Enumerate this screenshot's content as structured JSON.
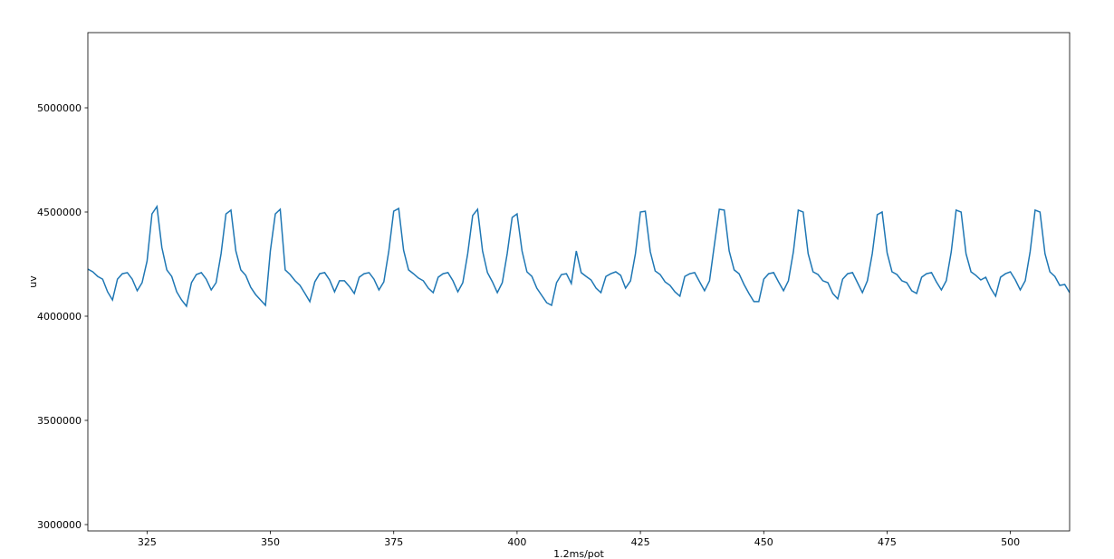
{
  "chart_data": {
    "type": "line",
    "title": "",
    "xlabel": "1.2ms/pot",
    "ylabel": "uv",
    "xlim": [
      313,
      512
    ],
    "ylim": [
      2969565,
      5360870
    ],
    "xticks": [
      325,
      350,
      375,
      400,
      425,
      450,
      475,
      500
    ],
    "xtick_labels": [
      "325",
      "350",
      "375",
      "400",
      "425",
      "450",
      "475",
      "500"
    ],
    "yticks": [
      3000000,
      3500000,
      4000000,
      4500000,
      5000000
    ],
    "ytick_labels": [
      "3000000",
      "3500000",
      "4000000",
      "4500000",
      "5000000"
    ],
    "grid": false,
    "line_color": "#1f77b4",
    "x": [
      313,
      314,
      315,
      316,
      317,
      318,
      319,
      320,
      321,
      322,
      323,
      324,
      325,
      326,
      327,
      328,
      329,
      330,
      331,
      332,
      333,
      334,
      335,
      336,
      337,
      338,
      339,
      340,
      341,
      342,
      343,
      344,
      345,
      346,
      347,
      348,
      349,
      350,
      351,
      352,
      353,
      354,
      355,
      356,
      357,
      358,
      359,
      360,
      361,
      362,
      363,
      364,
      365,
      366,
      367,
      368,
      369,
      370,
      371,
      372,
      373,
      374,
      375,
      376,
      377,
      378,
      379,
      380,
      381,
      382,
      383,
      384,
      385,
      386,
      387,
      388,
      389,
      390,
      391,
      392,
      393,
      394,
      395,
      396,
      397,
      398,
      399,
      400,
      401,
      402,
      403,
      404,
      405,
      406,
      407,
      408,
      409,
      410,
      411,
      412,
      413,
      414,
      415,
      416,
      417,
      418,
      419,
      420,
      421,
      422,
      423,
      424,
      425,
      426,
      427,
      428,
      429,
      430,
      431,
      432,
      433,
      434,
      435,
      436,
      437,
      438,
      439,
      440,
      441,
      442,
      443,
      444,
      445,
      446,
      447,
      448,
      449,
      450,
      451,
      452,
      453,
      454,
      455,
      456,
      457,
      458,
      459,
      460,
      461,
      462,
      463,
      464,
      465,
      466,
      467,
      468,
      469,
      470,
      471,
      472,
      473,
      474,
      475,
      476,
      477,
      478,
      479,
      480,
      481,
      482,
      483,
      484,
      485,
      486,
      487,
      488,
      489,
      490,
      491,
      492,
      493,
      494,
      495,
      496,
      497,
      498,
      499,
      500,
      501,
      502,
      503,
      504,
      505,
      506,
      507,
      508,
      509,
      510,
      511,
      512
    ],
    "y": [
      4226000,
      4213000,
      4191000,
      4178000,
      4117000,
      4078000,
      4178000,
      4204000,
      4209000,
      4178000,
      4122000,
      4161000,
      4265000,
      4491000,
      4526000,
      4330000,
      4222000,
      4191000,
      4117000,
      4078000,
      4048000,
      4161000,
      4200000,
      4209000,
      4178000,
      4126000,
      4161000,
      4300000,
      4491000,
      4509000,
      4313000,
      4222000,
      4196000,
      4139000,
      4104000,
      4078000,
      4052000,
      4313000,
      4491000,
      4513000,
      4222000,
      4200000,
      4170000,
      4148000,
      4109000,
      4070000,
      4165000,
      4204000,
      4209000,
      4174000,
      4117000,
      4170000,
      4170000,
      4143000,
      4109000,
      4187000,
      4204000,
      4209000,
      4178000,
      4126000,
      4165000,
      4313000,
      4504000,
      4517000,
      4317000,
      4222000,
      4204000,
      4183000,
      4170000,
      4135000,
      4113000,
      4187000,
      4204000,
      4209000,
      4170000,
      4117000,
      4161000,
      4300000,
      4483000,
      4513000,
      4313000,
      4209000,
      4165000,
      4113000,
      4161000,
      4300000,
      4474000,
      4491000,
      4313000,
      4213000,
      4191000,
      4135000,
      4100000,
      4065000,
      4052000,
      4161000,
      4200000,
      4204000,
      4157000,
      4313000,
      4209000,
      4191000,
      4174000,
      4135000,
      4113000,
      4191000,
      4204000,
      4213000,
      4196000,
      4135000,
      4170000,
      4300000,
      4500000,
      4504000,
      4309000,
      4217000,
      4200000,
      4165000,
      4148000,
      4117000,
      4096000,
      4191000,
      4204000,
      4209000,
      4165000,
      4122000,
      4170000,
      4343000,
      4513000,
      4509000,
      4313000,
      4222000,
      4204000,
      4152000,
      4109000,
      4070000,
      4070000,
      4178000,
      4204000,
      4209000,
      4165000,
      4122000,
      4170000,
      4309000,
      4509000,
      4500000,
      4300000,
      4213000,
      4200000,
      4170000,
      4161000,
      4109000,
      4083000,
      4178000,
      4204000,
      4209000,
      4161000,
      4113000,
      4170000,
      4300000,
      4487000,
      4500000,
      4304000,
      4213000,
      4200000,
      4170000,
      4161000,
      4122000,
      4109000,
      4187000,
      4204000,
      4209000,
      4165000,
      4126000,
      4170000,
      4309000,
      4509000,
      4500000,
      4300000,
      4213000,
      4196000,
      4174000,
      4187000,
      4135000,
      4096000,
      4187000,
      4204000,
      4213000,
      4174000,
      4126000,
      4170000,
      4309000,
      4509000,
      4500000,
      4300000,
      4213000,
      4191000,
      4148000,
      4152000,
      4113000
    ]
  }
}
